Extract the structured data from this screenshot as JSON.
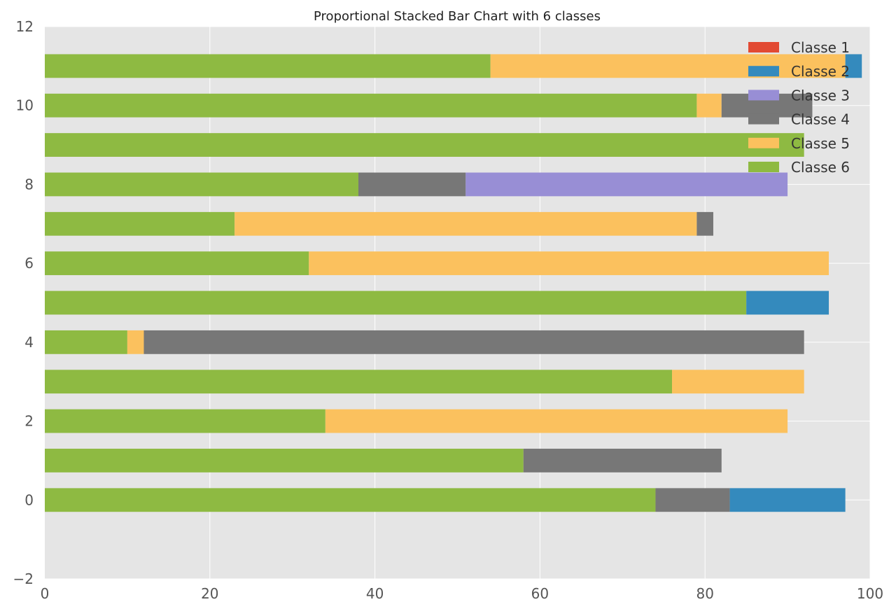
{
  "chart_data": {
    "type": "bar",
    "orientation": "horizontal",
    "stacked": true,
    "title": "Proportional Stacked Bar Chart with 6 classes",
    "xlabel": "",
    "ylabel": "",
    "xlim": [
      0,
      100
    ],
    "ylim": [
      -2,
      12
    ],
    "xticks": [
      0,
      20,
      40,
      60,
      80,
      100
    ],
    "yticks": [
      -2,
      0,
      2,
      4,
      6,
      8,
      10,
      12
    ],
    "grid": true,
    "legend_position": "top-right",
    "categories": [
      0,
      1,
      2,
      3,
      4,
      5,
      6,
      7,
      8,
      9,
      10,
      11
    ],
    "series": [
      {
        "name": "Classe 6",
        "color": "#8EBA42",
        "values": [
          74,
          58,
          34,
          76,
          10,
          85,
          32,
          23,
          38,
          92,
          79,
          54
        ]
      },
      {
        "name": "Classe 5",
        "color": "#FBC15E",
        "values": [
          0,
          0,
          56,
          16,
          2,
          0,
          63,
          56,
          0,
          0,
          3,
          43
        ]
      },
      {
        "name": "Classe 4",
        "color": "#777777",
        "values": [
          9,
          24,
          0,
          0,
          80,
          0,
          0,
          2,
          13,
          0,
          11,
          0
        ]
      },
      {
        "name": "Classe 3",
        "color": "#988ED5",
        "values": [
          0,
          0,
          0,
          0,
          0,
          0,
          0,
          0,
          39,
          0,
          0,
          0
        ]
      },
      {
        "name": "Classe 2",
        "color": "#348ABD",
        "values": [
          14,
          0,
          0,
          0,
          0,
          10,
          0,
          0,
          0,
          0,
          0,
          2
        ]
      },
      {
        "name": "Classe 1",
        "color": "#E24A33",
        "values": [
          0,
          0,
          0,
          0,
          0,
          0,
          0,
          0,
          0,
          0,
          0,
          0
        ]
      }
    ],
    "legend": [
      "Classe 1",
      "Classe 2",
      "Classe 3",
      "Classe 4",
      "Classe 5",
      "Classe 6"
    ]
  }
}
